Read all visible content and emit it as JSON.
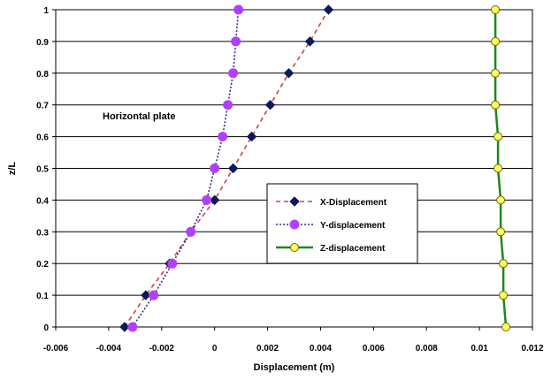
{
  "chart_data": {
    "type": "line",
    "title": "",
    "xlabel": "Displacement (m)",
    "ylabel": "z/L",
    "xlim": [
      -0.006,
      0.012
    ],
    "ylim": [
      0,
      1
    ],
    "x_ticks": [
      "-0.006",
      "-0.004",
      "-0.002",
      "0",
      "0.002",
      "0.004",
      "0.006",
      "0.008",
      "0.01",
      "0.012"
    ],
    "y_ticks": [
      "0",
      "0.1",
      "0.2",
      "0.3",
      "0.4",
      "0.5",
      "0.6",
      "0.7",
      "0.8",
      "0.9",
      "1"
    ],
    "grid": {
      "horizontal": true,
      "vertical": false
    },
    "legend_placement": "center-right",
    "annotation": "Horizontal plate",
    "series": [
      {
        "name": "X-Displacement",
        "color": "#0a1a5c",
        "line_color": "#d04040",
        "line_style": "dashed",
        "marker": "diamond",
        "y": [
          0,
          0.1,
          0.2,
          0.3,
          0.4,
          0.5,
          0.6,
          0.7,
          0.8,
          0.9,
          1
        ],
        "x": [
          -0.0034,
          -0.0026,
          -0.0017,
          -0.0009,
          0.0,
          0.0007,
          0.0014,
          0.0021,
          0.0028,
          0.0036,
          0.0043
        ]
      },
      {
        "name": "Y-displacement",
        "color": "#b040ff",
        "line_color": "#2a2aa0",
        "line_style": "dotted",
        "marker": "circle",
        "y": [
          0,
          0.1,
          0.2,
          0.3,
          0.4,
          0.5,
          0.6,
          0.7,
          0.8,
          0.9,
          1
        ],
        "x": [
          -0.0031,
          -0.0023,
          -0.0016,
          -0.0009,
          -0.0003,
          0.0,
          0.0003,
          0.0005,
          0.0007,
          0.0008,
          0.0009
        ]
      },
      {
        "name": "Z-displacement",
        "color": "#ffff60",
        "line_color": "#1a8a1a",
        "line_style": "solid",
        "marker": "circle-open",
        "y": [
          0,
          0.1,
          0.2,
          0.3,
          0.4,
          0.5,
          0.6,
          0.7,
          0.8,
          0.9,
          1
        ],
        "x": [
          0.011,
          0.0109,
          0.0109,
          0.0108,
          0.0108,
          0.0107,
          0.0107,
          0.0106,
          0.0106,
          0.0106,
          0.0106
        ]
      }
    ]
  }
}
